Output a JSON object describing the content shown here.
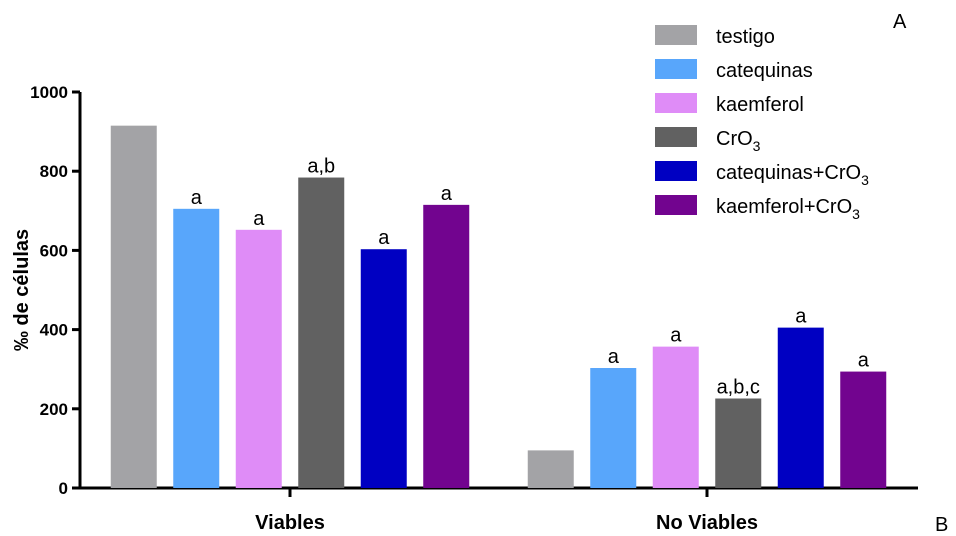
{
  "chart_data": {
    "type": "bar",
    "ylabel": "‰ de células",
    "ylim": [
      0,
      1000
    ],
    "yticks": [
      0,
      200,
      400,
      600,
      800,
      1000
    ],
    "categories": [
      "Viables",
      "No Viables"
    ],
    "series": [
      {
        "name": "testigo",
        "sub": "",
        "color": "#a3a3a6",
        "values": [
          915,
          95
        ],
        "labels": [
          "",
          ""
        ]
      },
      {
        "name": "catequinas",
        "sub": "",
        "color": "#58a6fb",
        "values": [
          705,
          303
        ],
        "labels": [
          "a",
          "a"
        ]
      },
      {
        "name": "kaemferol",
        "sub": "",
        "color": "#df8cf7",
        "values": [
          652,
          357
        ],
        "labels": [
          "a",
          "a"
        ]
      },
      {
        "name": "CrO",
        "sub": "3",
        "color": "#616161",
        "values": [
          784,
          226
        ],
        "labels": [
          "a,b",
          "a,b,c"
        ]
      },
      {
        "name": "catequinas+CrO",
        "sub": "3",
        "color": "#0000c2",
        "values": [
          603,
          405
        ],
        "labels": [
          "a",
          "a"
        ]
      },
      {
        "name": "kaemferol+CrO",
        "sub": "3",
        "color": "#72048f",
        "values": [
          715,
          294
        ],
        "labels": [
          "a",
          "a"
        ]
      }
    ],
    "panel_labels": [
      "A",
      "B"
    ]
  }
}
